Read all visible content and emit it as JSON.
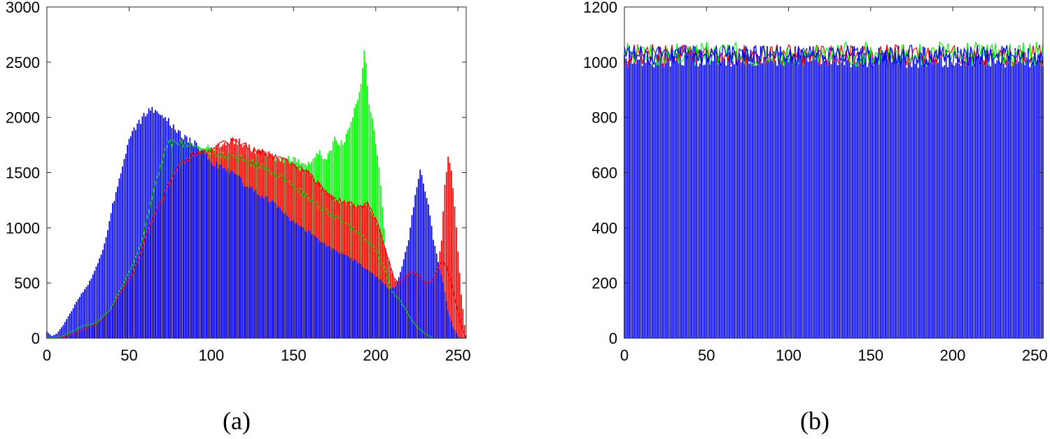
{
  "chart_data": [
    {
      "type": "bar",
      "caption": "(a)",
      "xlim": [
        0,
        255
      ],
      "ylim": [
        0,
        3000
      ],
      "xticks": [
        0,
        50,
        100,
        150,
        200,
        250
      ],
      "yticks": [
        0,
        500,
        1000,
        1500,
        2000,
        2500,
        3000
      ],
      "grid": false,
      "legend": "none",
      "series": [
        {
          "color": "#00ff00",
          "style": "bars",
          "points": [
            [
              0,
              0
            ],
            [
              8,
              10
            ],
            [
              15,
              60
            ],
            [
              22,
              110
            ],
            [
              30,
              140
            ],
            [
              38,
              250
            ],
            [
              45,
              450
            ],
            [
              52,
              650
            ],
            [
              58,
              900
            ],
            [
              62,
              1150
            ],
            [
              66,
              1400
            ],
            [
              70,
              1600
            ],
            [
              73,
              1750
            ],
            [
              77,
              1780
            ],
            [
              82,
              1760
            ],
            [
              88,
              1740
            ],
            [
              95,
              1720
            ],
            [
              100,
              1730
            ],
            [
              105,
              1650
            ],
            [
              110,
              1700
            ],
            [
              115,
              1680
            ],
            [
              120,
              1640
            ],
            [
              125,
              1660
            ],
            [
              130,
              1620
            ],
            [
              135,
              1640
            ],
            [
              140,
              1600
            ],
            [
              145,
              1620
            ],
            [
              150,
              1620
            ],
            [
              155,
              1580
            ],
            [
              160,
              1600
            ],
            [
              165,
              1700
            ],
            [
              170,
              1620
            ],
            [
              175,
              1800
            ],
            [
              180,
              1750
            ],
            [
              185,
              1950
            ],
            [
              188,
              2150
            ],
            [
              191,
              2300
            ],
            [
              193,
              2640
            ],
            [
              196,
              2150
            ],
            [
              199,
              1900
            ],
            [
              203,
              1400
            ],
            [
              206,
              800
            ],
            [
              209,
              500
            ],
            [
              212,
              420
            ],
            [
              216,
              300
            ],
            [
              220,
              200
            ],
            [
              225,
              100
            ],
            [
              230,
              40
            ],
            [
              235,
              0
            ]
          ]
        },
        {
          "color": "#ff0000",
          "style": "bars",
          "points": [
            [
              0,
              0
            ],
            [
              8,
              10
            ],
            [
              15,
              30
            ],
            [
              22,
              80
            ],
            [
              30,
              130
            ],
            [
              38,
              250
            ],
            [
              45,
              420
            ],
            [
              52,
              580
            ],
            [
              58,
              820
            ],
            [
              62,
              1000
            ],
            [
              66,
              1150
            ],
            [
              70,
              1250
            ],
            [
              75,
              1420
            ],
            [
              80,
              1550
            ],
            [
              85,
              1620
            ],
            [
              90,
              1680
            ],
            [
              95,
              1690
            ],
            [
              100,
              1700
            ],
            [
              105,
              1750
            ],
            [
              110,
              1780
            ],
            [
              115,
              1790
            ],
            [
              120,
              1760
            ],
            [
              125,
              1700
            ],
            [
              130,
              1680
            ],
            [
              135,
              1670
            ],
            [
              140,
              1620
            ],
            [
              145,
              1600
            ],
            [
              150,
              1580
            ],
            [
              155,
              1540
            ],
            [
              160,
              1480
            ],
            [
              165,
              1400
            ],
            [
              170,
              1320
            ],
            [
              175,
              1260
            ],
            [
              180,
              1240
            ],
            [
              185,
              1220
            ],
            [
              190,
              1180
            ],
            [
              195,
              1220
            ],
            [
              200,
              1080
            ],
            [
              203,
              950
            ],
            [
              206,
              800
            ],
            [
              208,
              700
            ],
            [
              211,
              540
            ],
            [
              214,
              500
            ],
            [
              218,
              560
            ],
            [
              222,
              600
            ],
            [
              226,
              580
            ],
            [
              230,
              500
            ],
            [
              234,
              520
            ],
            [
              237,
              600
            ],
            [
              240,
              900
            ],
            [
              242,
              1400
            ],
            [
              244,
              1650
            ],
            [
              246,
              1500
            ],
            [
              248,
              1200
            ],
            [
              250,
              800
            ],
            [
              252,
              400
            ],
            [
              254,
              120
            ],
            [
              255,
              0
            ]
          ]
        },
        {
          "color": "#0000ff",
          "style": "bars",
          "points": [
            [
              0,
              60
            ],
            [
              3,
              20
            ],
            [
              6,
              40
            ],
            [
              10,
              120
            ],
            [
              15,
              250
            ],
            [
              20,
              380
            ],
            [
              25,
              480
            ],
            [
              30,
              650
            ],
            [
              35,
              850
            ],
            [
              40,
              1200
            ],
            [
              45,
              1500
            ],
            [
              50,
              1780
            ],
            [
              55,
              1940
            ],
            [
              60,
              2040
            ],
            [
              63,
              2080
            ],
            [
              66,
              2030
            ],
            [
              70,
              2000
            ],
            [
              75,
              1950
            ],
            [
              80,
              1860
            ],
            [
              85,
              1800
            ],
            [
              90,
              1760
            ],
            [
              95,
              1680
            ],
            [
              100,
              1600
            ],
            [
              105,
              1560
            ],
            [
              110,
              1520
            ],
            [
              115,
              1480
            ],
            [
              120,
              1400
            ],
            [
              125,
              1360
            ],
            [
              130,
              1300
            ],
            [
              135,
              1250
            ],
            [
              140,
              1200
            ],
            [
              145,
              1120
            ],
            [
              150,
              1050
            ],
            [
              155,
              1000
            ],
            [
              160,
              960
            ],
            [
              165,
              900
            ],
            [
              170,
              840
            ],
            [
              175,
              800
            ],
            [
              180,
              760
            ],
            [
              185,
              720
            ],
            [
              190,
              680
            ],
            [
              195,
              620
            ],
            [
              200,
              560
            ],
            [
              205,
              500
            ],
            [
              208,
              440
            ],
            [
              212,
              470
            ],
            [
              216,
              650
            ],
            [
              220,
              900
            ],
            [
              224,
              1300
            ],
            [
              227,
              1550
            ],
            [
              229,
              1400
            ],
            [
              232,
              1200
            ],
            [
              235,
              900
            ],
            [
              238,
              700
            ],
            [
              241,
              500
            ],
            [
              244,
              250
            ],
            [
              247,
              100
            ],
            [
              250,
              20
            ],
            [
              252,
              0
            ]
          ]
        },
        {
          "color": "#ff0000",
          "style": "line",
          "points": [
            [
              0,
              0
            ],
            [
              8,
              10
            ],
            [
              15,
              30
            ],
            [
              22,
              80
            ],
            [
              30,
              130
            ],
            [
              38,
              250
            ],
            [
              45,
              420
            ],
            [
              52,
              580
            ],
            [
              58,
              820
            ],
            [
              62,
              1000
            ],
            [
              66,
              1150
            ],
            [
              70,
              1250
            ],
            [
              75,
              1420
            ],
            [
              80,
              1550
            ],
            [
              85,
              1620
            ],
            [
              90,
              1680
            ],
            [
              95,
              1690
            ],
            [
              100,
              1700
            ],
            [
              105,
              1750
            ],
            [
              110,
              1780
            ],
            [
              115,
              1790
            ],
            [
              120,
              1760
            ],
            [
              125,
              1700
            ],
            [
              130,
              1680
            ],
            [
              135,
              1670
            ],
            [
              140,
              1620
            ],
            [
              145,
              1600
            ],
            [
              150,
              1580
            ],
            [
              155,
              1540
            ],
            [
              160,
              1480
            ],
            [
              165,
              1400
            ],
            [
              170,
              1320
            ],
            [
              175,
              1260
            ],
            [
              180,
              1240
            ],
            [
              185,
              1220
            ],
            [
              190,
              1180
            ],
            [
              195,
              1220
            ],
            [
              200,
              1080
            ],
            [
              203,
              950
            ],
            [
              206,
              800
            ],
            [
              208,
              700
            ],
            [
              211,
              540
            ],
            [
              214,
              500
            ],
            [
              218,
              560
            ],
            [
              222,
              600
            ],
            [
              226,
              580
            ],
            [
              230,
              500
            ],
            [
              234,
              520
            ],
            [
              237,
              600
            ],
            [
              240,
              700
            ],
            [
              243,
              650
            ],
            [
              246,
              500
            ],
            [
              249,
              300
            ],
            [
              252,
              120
            ],
            [
              255,
              0
            ]
          ]
        },
        {
          "color": "#00cc00",
          "style": "line",
          "points": [
            [
              0,
              0
            ],
            [
              8,
              10
            ],
            [
              15,
              60
            ],
            [
              22,
              110
            ],
            [
              30,
              140
            ],
            [
              38,
              250
            ],
            [
              45,
              450
            ],
            [
              52,
              650
            ],
            [
              58,
              900
            ],
            [
              62,
              1150
            ],
            [
              66,
              1400
            ],
            [
              70,
              1600
            ],
            [
              73,
              1750
            ],
            [
              77,
              1780
            ],
            [
              82,
              1760
            ],
            [
              88,
              1740
            ],
            [
              95,
              1720
            ],
            [
              100,
              1730
            ],
            [
              105,
              1650
            ],
            [
              110,
              1640
            ],
            [
              120,
              1620
            ],
            [
              130,
              1560
            ],
            [
              140,
              1480
            ],
            [
              150,
              1380
            ],
            [
              160,
              1260
            ],
            [
              170,
              1150
            ],
            [
              180,
              1050
            ],
            [
              190,
              950
            ],
            [
              200,
              800
            ],
            [
              206,
              600
            ],
            [
              210,
              420
            ],
            [
              214,
              360
            ],
            [
              218,
              260
            ],
            [
              222,
              160
            ],
            [
              226,
              90
            ],
            [
              230,
              40
            ],
            [
              235,
              0
            ]
          ]
        }
      ]
    },
    {
      "type": "bar",
      "caption": "(b)",
      "xlim": [
        0,
        255
      ],
      "ylim": [
        0,
        1200
      ],
      "xticks": [
        0,
        50,
        100,
        150,
        200,
        250
      ],
      "yticks": [
        0,
        200,
        400,
        600,
        800,
        1000,
        1200
      ],
      "grid": false,
      "legend": "none",
      "series": [
        {
          "color": "#0000ff",
          "style": "bars",
          "mean": 1020,
          "spread": 40
        },
        {
          "color": "#ff0000",
          "style": "line",
          "mean": 1025,
          "spread": 40
        },
        {
          "color": "#00ff00",
          "style": "line",
          "mean": 1030,
          "spread": 45
        },
        {
          "color": "#0000ff",
          "style": "line",
          "mean": 1022,
          "spread": 40
        }
      ]
    }
  ]
}
